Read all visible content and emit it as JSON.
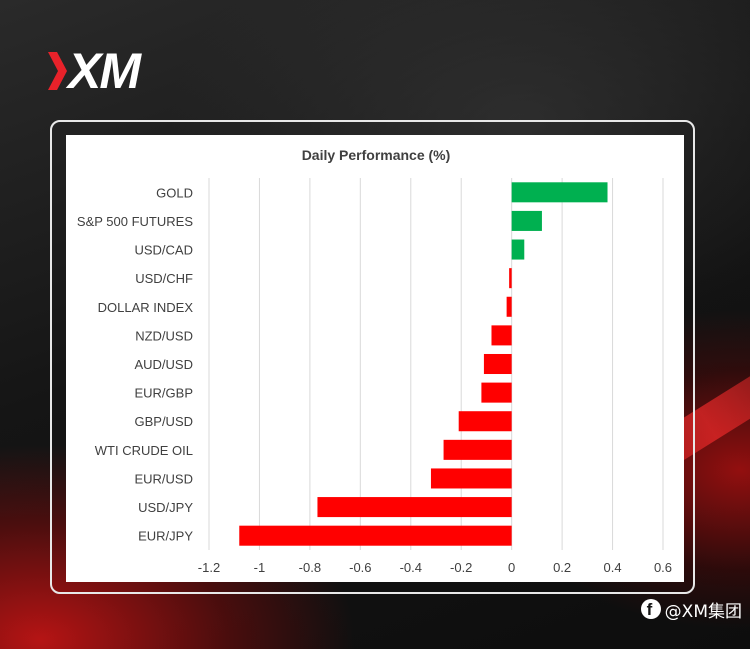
{
  "brand": {
    "logo_text": "XM",
    "logo_accent_color": "#e8222a"
  },
  "watermark": {
    "icon": "facebook-icon",
    "text": "@XM集团"
  },
  "colors": {
    "positive": "#00b050",
    "negative": "#ff0000",
    "grid": "#d9d9d9",
    "text": "#404040"
  },
  "chart_data": {
    "type": "bar",
    "orientation": "horizontal",
    "title": "Daily Performance (%)",
    "categories": [
      "GOLD",
      "S&P 500 FUTURES",
      "USD/CAD",
      "USD/CHF",
      "DOLLAR INDEX",
      "NZD/USD",
      "AUD/USD",
      "EUR/GBP",
      "GBP/USD",
      "WTI CRUDE OIL",
      "EUR/USD",
      "USD/JPY",
      "EUR/JPY"
    ],
    "values": [
      0.38,
      0.12,
      0.05,
      -0.01,
      -0.02,
      -0.08,
      -0.11,
      -0.12,
      -0.21,
      -0.27,
      -0.32,
      -0.77,
      -1.08
    ],
    "xlim": [
      -1.2,
      0.6
    ],
    "xticks": [
      "-1.2",
      "-1",
      "-0.8",
      "-0.6",
      "-0.4",
      "-0.2",
      "0",
      "0.2",
      "0.4",
      "0.6"
    ],
    "grid": "vertical",
    "legend": "none"
  }
}
